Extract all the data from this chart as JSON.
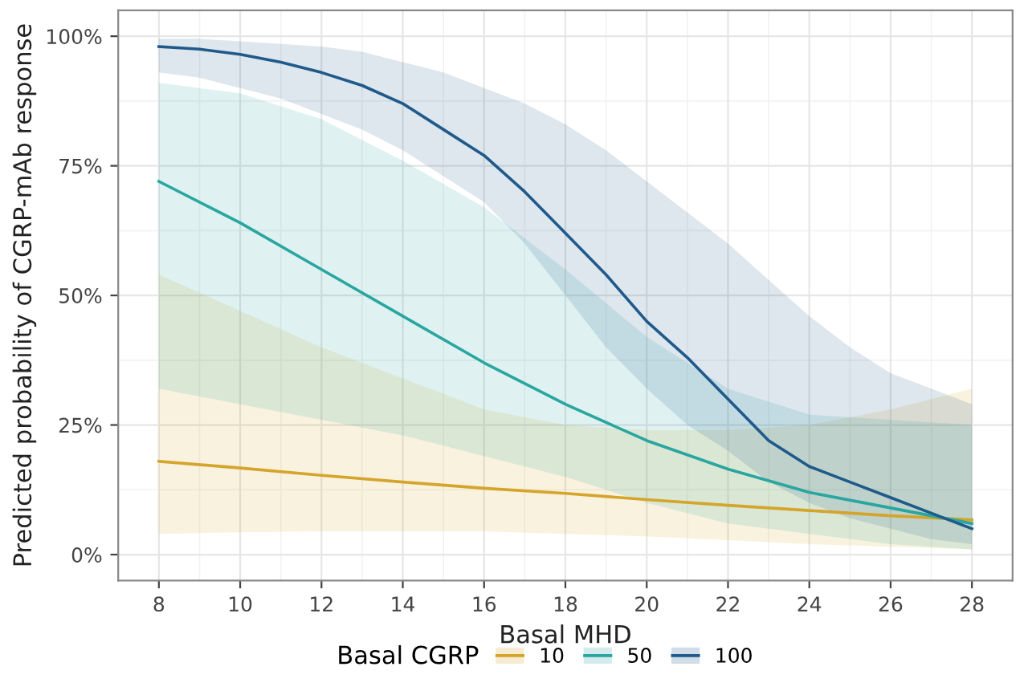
{
  "chart_data": {
    "type": "line",
    "xlabel": "Basal MHD",
    "ylabel": "Predicted probability of CGRP-mAb response",
    "legend_title": "Basal CGRP",
    "legend": "bottom",
    "grid": true,
    "xlim": [
      7,
      29
    ],
    "xticks": [
      8,
      10,
      12,
      14,
      16,
      18,
      20,
      22,
      24,
      26,
      28
    ],
    "ylim": [
      -5,
      105
    ],
    "yticks": [
      {
        "value": 0,
        "label": "0%"
      },
      {
        "value": 25,
        "label": "25%"
      },
      {
        "value": 50,
        "label": "50%"
      },
      {
        "value": 75,
        "label": "75%"
      },
      {
        "value": 100,
        "label": "100%"
      }
    ],
    "series": [
      {
        "name": "10",
        "color": "#d4a52a",
        "x": [
          8,
          10,
          12,
          14,
          16,
          18,
          20,
          22,
          24,
          26,
          28
        ],
        "values": [
          18,
          16.7,
          15.3,
          14,
          12.8,
          11.8,
          10.6,
          9.5,
          8.5,
          7.5,
          6.7
        ],
        "lower": [
          4,
          4.3,
          4.5,
          4.5,
          4.5,
          4,
          3.5,
          2.8,
          2,
          1.5,
          1
        ],
        "upper": [
          54,
          47,
          40,
          34,
          28,
          25,
          24,
          24,
          25,
          28,
          32
        ]
      },
      {
        "name": "50",
        "color": "#2aa6a0",
        "x": [
          8,
          10,
          12,
          14,
          16,
          18,
          20,
          22,
          24,
          26,
          28
        ],
        "values": [
          72,
          64,
          55,
          46,
          37,
          29,
          22,
          16.5,
          12,
          9,
          6
        ],
        "lower": [
          32,
          29,
          26,
          23,
          19,
          15,
          10,
          6,
          4,
          2,
          1
        ],
        "upper": [
          91,
          89,
          84,
          76,
          67,
          55,
          42,
          32,
          27,
          26,
          25
        ]
      },
      {
        "name": "100",
        "color": "#1f5a8a",
        "x": [
          8,
          9,
          10,
          11,
          12,
          13,
          14,
          15,
          16,
          17,
          18,
          19,
          20,
          21,
          22,
          23,
          24,
          25,
          26,
          27,
          28
        ],
        "values": [
          98,
          97.5,
          96.5,
          95,
          93,
          90.5,
          87,
          82,
          77,
          70,
          62,
          54,
          45,
          38,
          30,
          22,
          17,
          14,
          11,
          8,
          5
        ],
        "lower": [
          93,
          92,
          90,
          88,
          85,
          82,
          78,
          73,
          68,
          60,
          50,
          40,
          32,
          25,
          20,
          14,
          10,
          7,
          5,
          3,
          2
        ],
        "upper": [
          99.5,
          99.5,
          99,
          98.5,
          98,
          97,
          95,
          93,
          90,
          87,
          83,
          78,
          72,
          66,
          60,
          53,
          46,
          40,
          35,
          32,
          29
        ]
      }
    ]
  }
}
